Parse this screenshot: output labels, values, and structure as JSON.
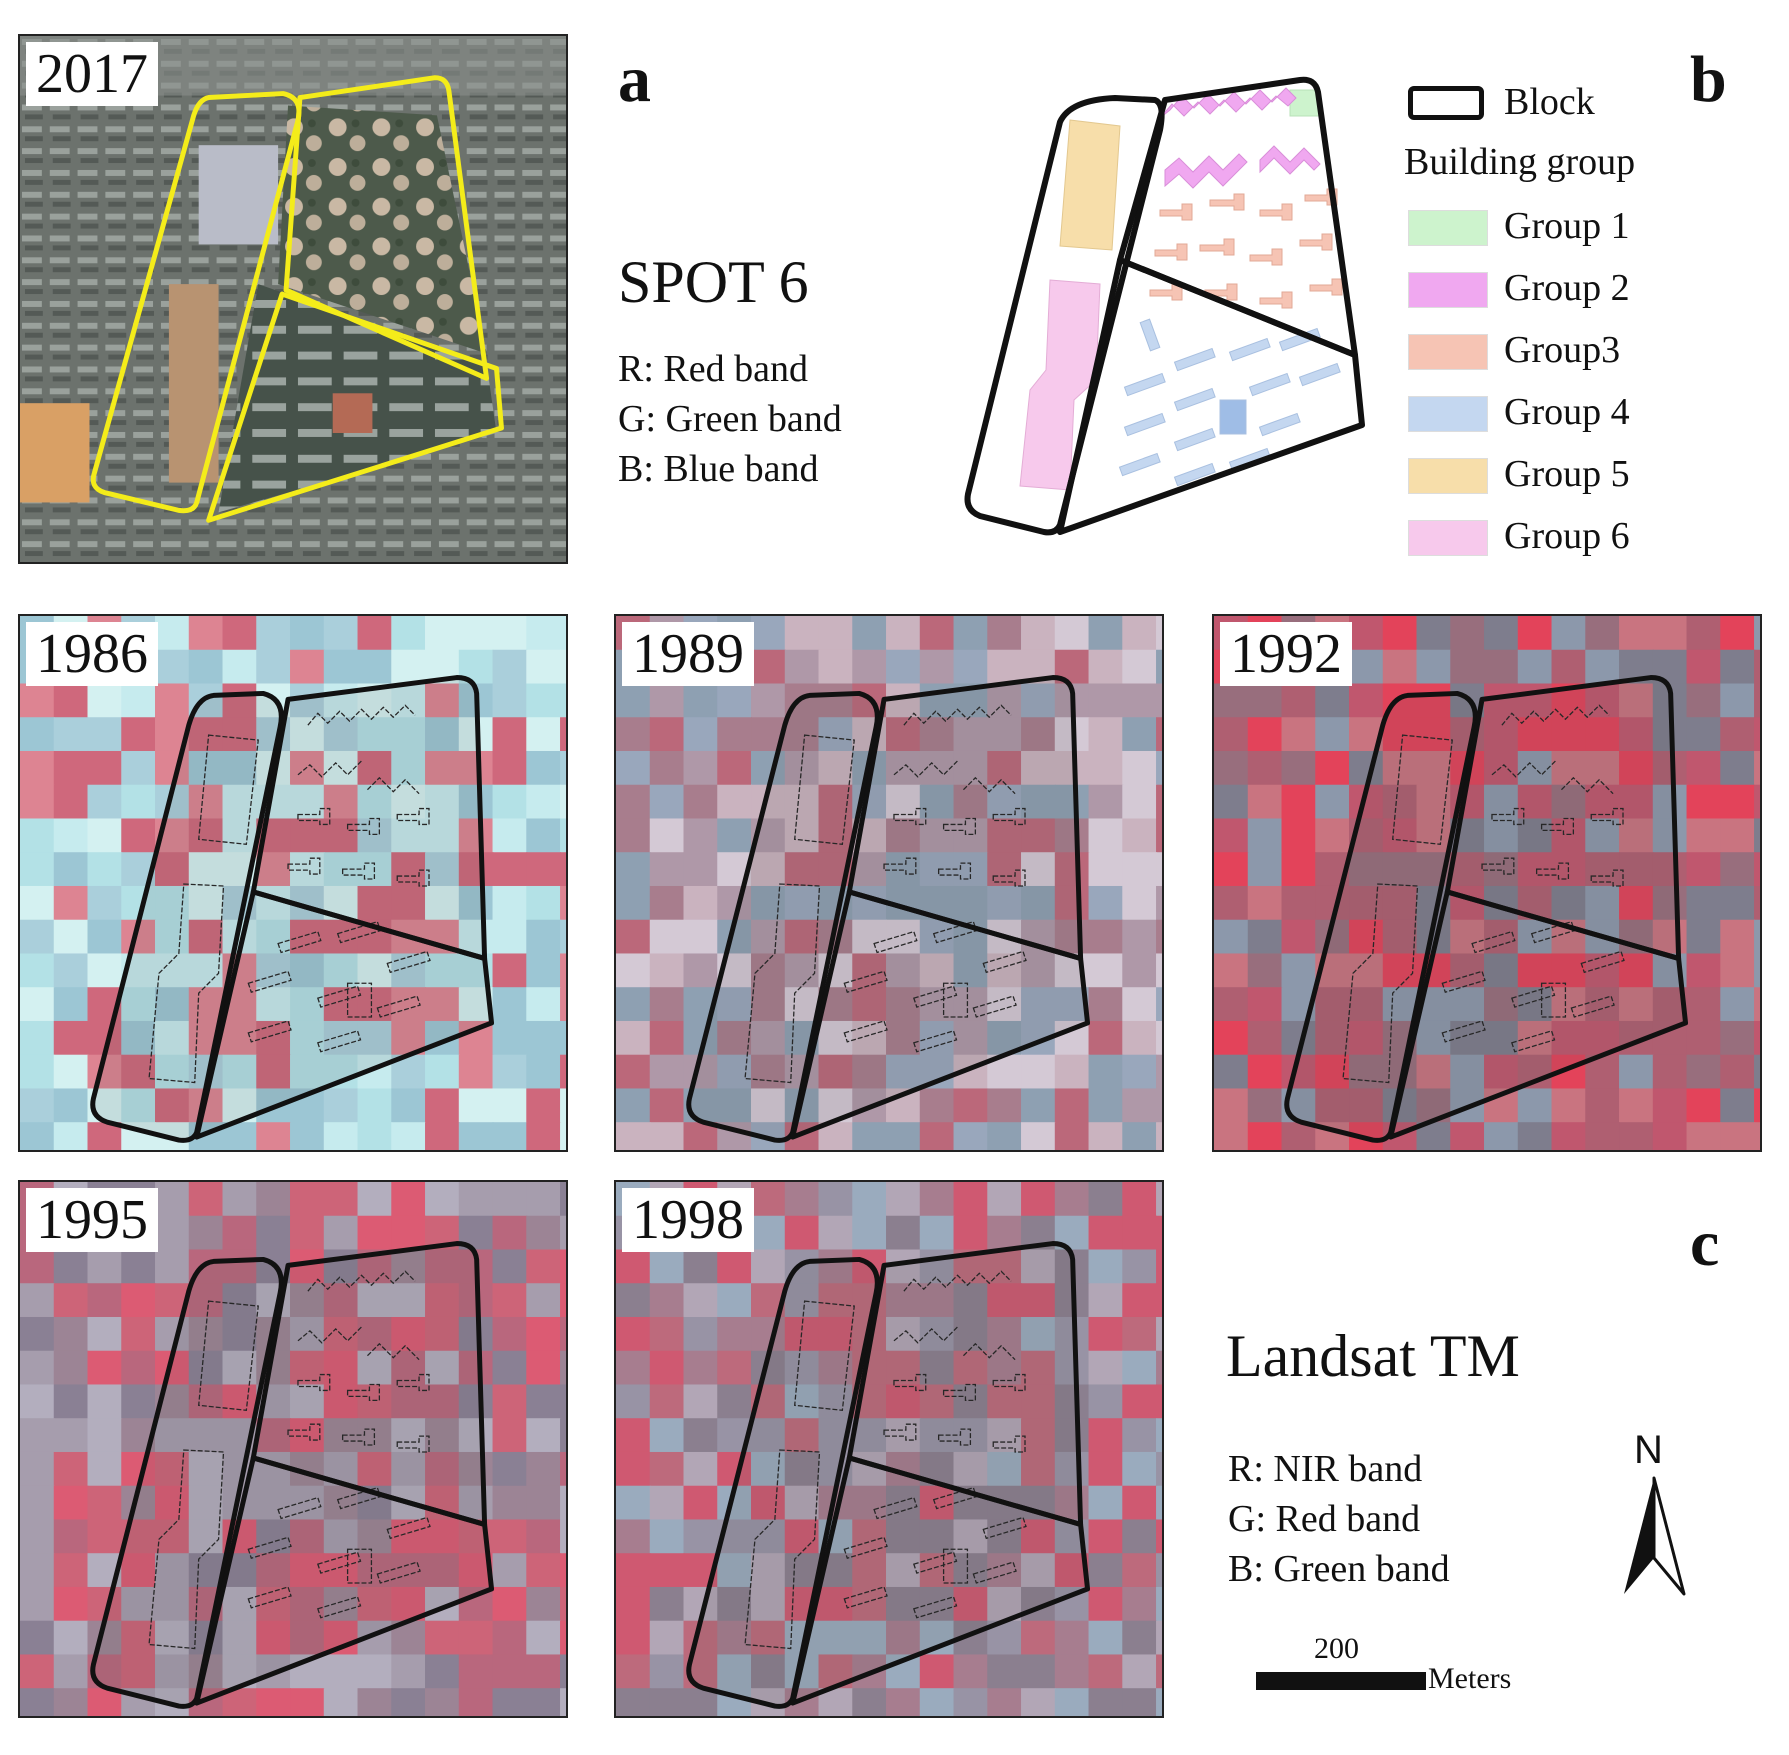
{
  "panel_a": {
    "letter": "a",
    "year": "2017",
    "sensor": "SPOT 6",
    "bands": [
      "R: Red band",
      "G: Green band",
      "B: Blue band"
    ]
  },
  "panel_b": {
    "letter": "b",
    "legend": {
      "block_label": "Block",
      "group_title": "Building group",
      "groups": [
        {
          "label": "Group 1",
          "color": "#cdf3cd"
        },
        {
          "label": "Group 2",
          "color": "#f0a8f0"
        },
        {
          "label": "Group3",
          "color": "#f6c4b4"
        },
        {
          "label": "Group 4",
          "color": "#c4d7f0"
        },
        {
          "label": "Group 5",
          "color": "#f7deaa"
        },
        {
          "label": "Group 6",
          "color": "#f7c9ec"
        }
      ]
    }
  },
  "panel_c": {
    "letter": "c",
    "years": [
      "1986",
      "1989",
      "1992",
      "1995",
      "1998"
    ],
    "sensor": "Landsat TM",
    "bands": [
      "R: NIR band",
      "G: Red band",
      "B: Green band"
    ],
    "north_label": "N",
    "scale": {
      "value": "200",
      "unit": "Meters"
    }
  },
  "colors": {
    "block_outline_a": "#f4ec1a",
    "block_outline": "#111111",
    "landsat_red": "#c0485e",
    "landsat_cyan": "#bfe9ec"
  }
}
